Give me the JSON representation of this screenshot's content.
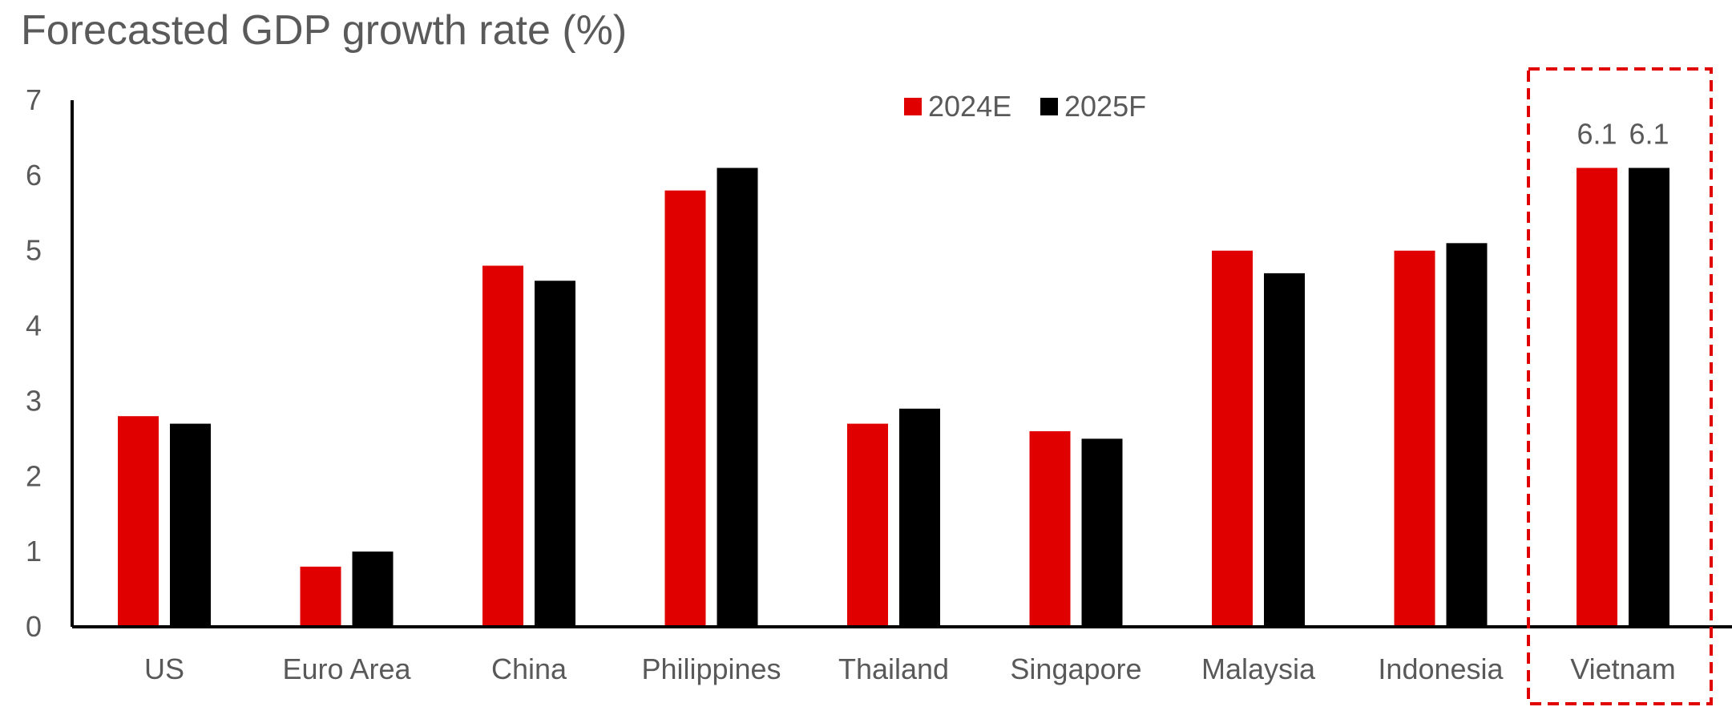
{
  "chart_data": {
    "type": "bar",
    "title": "Forecasted GDP growth rate (%)",
    "xlabel": "",
    "ylabel": "",
    "categories": [
      "US",
      "Euro Area",
      "China",
      "Philippines",
      "Thailand",
      "Singapore",
      "Malaysia",
      "Indonesia",
      "Vietnam"
    ],
    "series": [
      {
        "name": "2024E",
        "color": "#e00000",
        "values": [
          2.8,
          0.8,
          4.8,
          5.8,
          2.7,
          2.6,
          5.0,
          5.0,
          6.1
        ]
      },
      {
        "name": "2025F",
        "color": "#000000",
        "values": [
          2.7,
          1.0,
          4.6,
          6.1,
          2.9,
          2.5,
          4.7,
          5.1,
          6.1
        ]
      }
    ],
    "ylim": [
      0,
      7
    ],
    "yticks": [
      "0",
      "1",
      "2",
      "3",
      "4",
      "5",
      "6",
      "7"
    ],
    "grid": false,
    "legend_position": "top-center",
    "data_labels": {
      "category": "Vietnam",
      "values": [
        "6.1",
        "6.1"
      ]
    },
    "highlight": {
      "category": "Vietnam",
      "style": "dashed-box",
      "color": "#e00000"
    }
  }
}
